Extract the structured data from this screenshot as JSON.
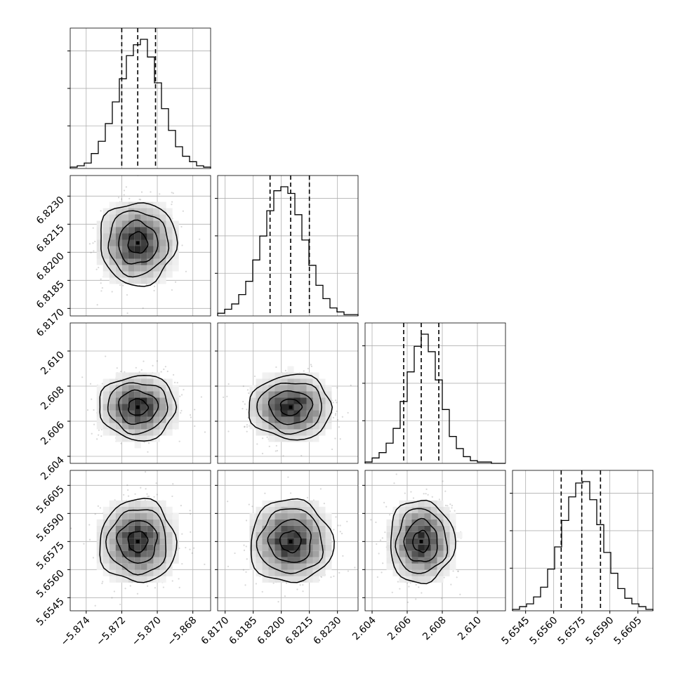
{
  "chart_data": {
    "type": "corner",
    "grid": true,
    "parameters": [
      {
        "range": [
          -5.8749,
          -5.867
        ],
        "ticks": [
          "−5.874",
          "−5.872",
          "−5.870",
          "−5.868"
        ],
        "tick_values": [
          -5.874,
          -5.872,
          -5.87,
          -5.868
        ],
        "quantiles": [
          -5.872,
          -5.8711,
          -5.8701
        ],
        "hist": [
          1,
          2,
          4,
          11,
          20,
          33,
          49,
          66,
          83,
          91,
          95,
          82,
          63,
          44,
          28,
          16,
          9,
          5,
          2,
          1
        ]
      },
      {
        "range": [
          6.8166,
          6.8241
        ],
        "ticks": [
          "6.8170",
          "6.8185",
          "6.8200",
          "6.8215",
          "6.8230"
        ],
        "tick_values": [
          6.817,
          6.8185,
          6.82,
          6.8215,
          6.823
        ],
        "quantiles": [
          6.8194,
          6.8205,
          6.8215
        ],
        "hist": [
          2,
          5,
          9,
          16,
          26,
          42,
          60,
          79,
          94,
          97,
          92,
          76,
          57,
          38,
          23,
          13,
          6,
          3,
          1,
          1
        ]
      },
      {
        "range": [
          2.6036,
          2.6116
        ],
        "ticks": [
          "2.604",
          "2.606",
          "2.608",
          "2.610"
        ],
        "tick_values": [
          2.604,
          2.606,
          2.608,
          2.61
        ],
        "quantiles": [
          2.6058,
          2.6068,
          2.6078
        ],
        "hist": [
          1,
          4,
          8,
          15,
          26,
          46,
          68,
          87,
          96,
          83,
          62,
          40,
          20,
          11,
          5,
          2,
          1,
          1,
          0,
          0
        ]
      },
      {
        "range": [
          5.6538,
          5.6613
        ],
        "ticks": [
          "5.6545",
          "5.6560",
          "5.6575",
          "5.6590",
          "5.6605"
        ],
        "tick_values": [
          5.6545,
          5.656,
          5.6575,
          5.659,
          5.6605
        ],
        "quantiles": [
          5.6564,
          5.6575,
          5.6585
        ],
        "hist": [
          1,
          3,
          5,
          10,
          17,
          30,
          46,
          65,
          82,
          92,
          93,
          80,
          62,
          42,
          27,
          16,
          9,
          5,
          3,
          1
        ]
      }
    ],
    "pairs": [
      {
        "x": 0,
        "y": 1,
        "center": [
          -5.8711,
          6.8205
        ],
        "sigma": [
          0.00105,
          0.00108
        ]
      },
      {
        "x": 0,
        "y": 2,
        "center": [
          -5.8711,
          2.6068
        ],
        "sigma": [
          0.00105,
          0.0009
        ]
      },
      {
        "x": 1,
        "y": 2,
        "center": [
          6.8205,
          2.6068
        ],
        "sigma": [
          0.00108,
          0.0009
        ]
      },
      {
        "x": 0,
        "y": 3,
        "center": [
          -5.8711,
          5.6575
        ],
        "sigma": [
          0.00105,
          0.00108
        ]
      },
      {
        "x": 1,
        "y": 3,
        "center": [
          6.8205,
          5.6575
        ],
        "sigma": [
          0.00108,
          0.00108
        ]
      },
      {
        "x": 2,
        "y": 3,
        "center": [
          2.6068,
          5.6575
        ],
        "sigma": [
          0.0009,
          0.00108
        ]
      }
    ]
  }
}
